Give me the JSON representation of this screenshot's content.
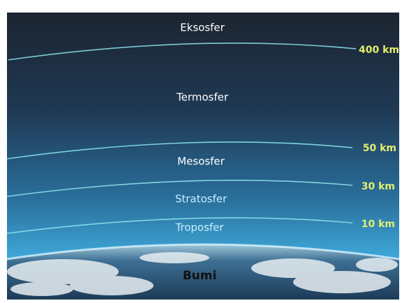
{
  "layers": [
    "Eksosfer",
    "Termosfer",
    "Mesosfer",
    "Stratosfer",
    "Troposfer"
  ],
  "surface": "Bumi",
  "boundaries": [
    "400 km",
    "50 km",
    "30 km",
    "10 km"
  ]
}
